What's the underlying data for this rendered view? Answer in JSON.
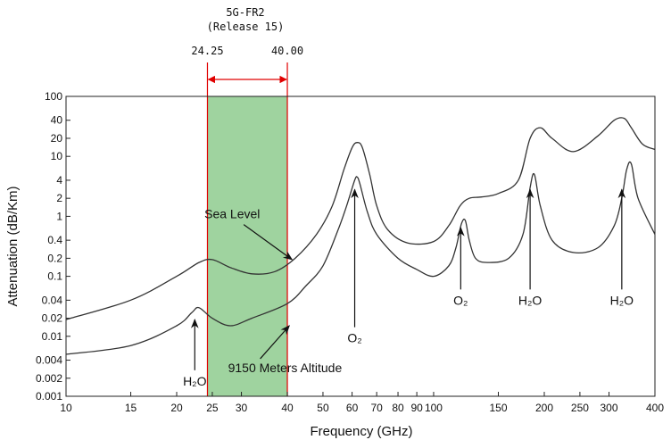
{
  "chart_data": {
    "type": "line",
    "xlabel": "Frequency (GHz)",
    "ylabel": "Attenuation (dB/Km)",
    "x_scale": "log",
    "y_scale": "log",
    "xlim": [
      10,
      400
    ],
    "ylim": [
      0.001,
      100
    ],
    "x_ticks": [
      10,
      15,
      20,
      25,
      30,
      40,
      50,
      60,
      70,
      80,
      90,
      100,
      150,
      200,
      250,
      300,
      400
    ],
    "x_tick_labels": [
      "10",
      "15",
      "20",
      "25",
      "30",
      "40",
      "50",
      "60",
      "70",
      "80",
      "90",
      "100",
      "150",
      "200",
      "250",
      "300",
      "400"
    ],
    "y_ticks": [
      0.001,
      0.002,
      0.004,
      0.01,
      0.02,
      0.04,
      0.1,
      0.2,
      0.4,
      1,
      2,
      4,
      10,
      20,
      40,
      100
    ],
    "y_tick_labels": [
      "0.001",
      "0.002",
      "0.004",
      "0.01",
      "0.02",
      "0.04",
      "0.1",
      "0.2",
      "0.4",
      "1",
      "2",
      "4",
      "10",
      "20",
      "40",
      "100"
    ],
    "grid": false,
    "band": {
      "title_line1": "5G-FR2",
      "title_line2": "(Release 15)",
      "start": 24.25,
      "end": 40.0,
      "start_label": "24.25",
      "end_label": "40.00",
      "fill_color": "#9fd39f",
      "line_color": "#e00000"
    },
    "series": [
      {
        "name": "Sea Level",
        "x": [
          10,
          15,
          20,
          23,
          25,
          28,
          32,
          37,
          42,
          48,
          53,
          57,
          60,
          62,
          64,
          67,
          70,
          75,
          85,
          100,
          110,
          118,
          125,
          135,
          150,
          170,
          183,
          195,
          210,
          240,
          280,
          310,
          330,
          345,
          370,
          400
        ],
        "y": [
          0.019,
          0.04,
          0.1,
          0.17,
          0.19,
          0.14,
          0.11,
          0.12,
          0.2,
          0.5,
          1.5,
          6,
          14,
          17,
          14,
          5,
          1.5,
          0.6,
          0.36,
          0.38,
          0.7,
          1.5,
          2,
          2.1,
          2.4,
          4,
          20,
          30,
          20,
          12,
          22,
          40,
          43,
          30,
          16,
          13
        ]
      },
      {
        "name": "9150 Meters Altitude",
        "x": [
          10,
          15,
          20,
          22,
          23,
          25,
          28,
          32,
          40,
          45,
          50,
          55,
          58,
          61,
          62,
          63,
          66,
          70,
          80,
          90,
          100,
          110,
          115,
          119,
          122,
          125,
          130,
          140,
          160,
          175,
          183,
          188,
          195,
          210,
          240,
          280,
          310,
          325,
          335,
          345,
          360,
          400
        ],
        "y": [
          0.005,
          0.007,
          0.015,
          0.025,
          0.03,
          0.02,
          0.015,
          0.02,
          0.035,
          0.07,
          0.15,
          0.6,
          1.5,
          4,
          4.5,
          3.5,
          1.2,
          0.5,
          0.2,
          0.13,
          0.1,
          0.15,
          0.3,
          0.75,
          0.85,
          0.4,
          0.2,
          0.17,
          0.2,
          0.5,
          3,
          5,
          1.5,
          0.4,
          0.25,
          0.3,
          0.7,
          2,
          6,
          7.5,
          2,
          0.5
        ]
      }
    ],
    "annotations": [
      {
        "id": "sea-level",
        "text": "Sea Level",
        "x_text": 23.8,
        "y_text": 1.1,
        "x_arrow": 41.2,
        "y_arrow": 0.19
      },
      {
        "id": "altitude",
        "text": "9150 Meters Altitude",
        "x_text": 33.0,
        "y_text": 0.003,
        "x_arrow": 40.5,
        "y_arrow": 0.015
      },
      {
        "id": "h2o-22",
        "text": "H₂O",
        "x_text": 22.4,
        "y_text": 0.0018,
        "x_arrow": 22.4,
        "y_arrow": 0.019
      },
      {
        "id": "o2-60",
        "text": "O₂",
        "x_text": 61.0,
        "y_text": 0.0094,
        "x_arrow": 61.0,
        "y_arrow": 2.8
      },
      {
        "id": "o2-119",
        "text": "O₂",
        "x_text": 118.5,
        "y_text": 0.04,
        "x_arrow": 118.5,
        "y_arrow": 0.65
      },
      {
        "id": "h2o-183",
        "text": "H₂O",
        "x_text": 183,
        "y_text": 0.04,
        "x_arrow": 183,
        "y_arrow": 2.8
      },
      {
        "id": "h2o-325",
        "text": "H₂O",
        "x_text": 325,
        "y_text": 0.04,
        "x_arrow": 325,
        "y_arrow": 2.8
      }
    ]
  }
}
